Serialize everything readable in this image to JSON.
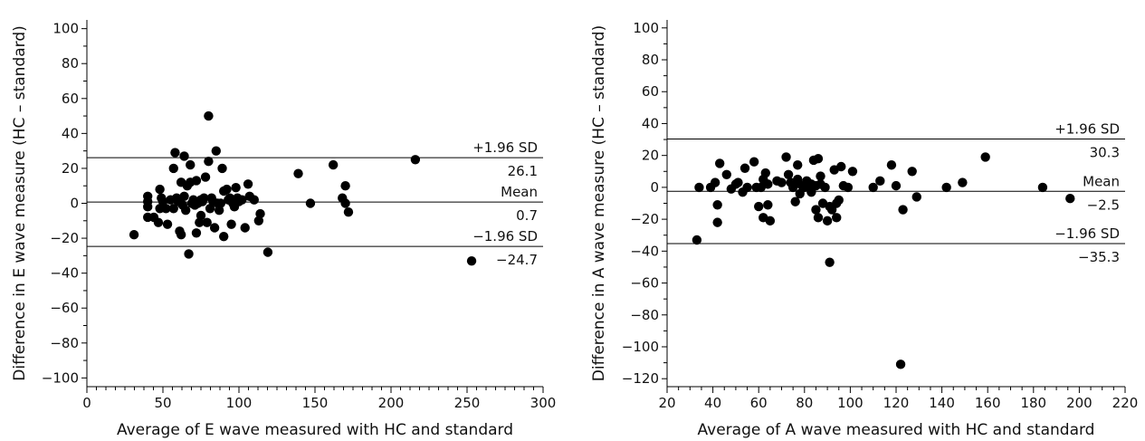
{
  "chart_data": [
    {
      "type": "scatter",
      "title": "",
      "xlabel": "Average of E wave measured with HC and standard",
      "ylabel": "Difference in E wave measure (HC – standard)",
      "xlim": [
        0,
        300
      ],
      "ylim": [
        -105,
        105
      ],
      "xticks": [
        0,
        50,
        100,
        150,
        200,
        250,
        300
      ],
      "yticks": [
        -100,
        -80,
        -60,
        -40,
        -20,
        0,
        20,
        40,
        60,
        80,
        100
      ],
      "xtick_labels": [
        "0",
        "50",
        "100",
        "150",
        "200",
        "250",
        "300"
      ],
      "ytick_labels": [
        "−100",
        "−80",
        "−60",
        "−40",
        "−20",
        "0",
        "20",
        "40",
        "60",
        "80",
        "100"
      ],
      "reference_lines": [
        {
          "y": 26.1,
          "label_above": "+1.96 SD",
          "value_label": "26.1"
        },
        {
          "y": 0.7,
          "label_above": "Mean",
          "value_label": "0.7"
        },
        {
          "y": -24.7,
          "label_above": "−1.96 SD",
          "value_label": "−24.7"
        }
      ],
      "grid": false,
      "points": [
        [
          31,
          -18
        ],
        [
          40,
          4
        ],
        [
          40,
          1
        ],
        [
          40,
          -2
        ],
        [
          40,
          -8
        ],
        [
          44,
          -8
        ],
        [
          47,
          -11
        ],
        [
          48,
          8
        ],
        [
          48,
          -3
        ],
        [
          49,
          3
        ],
        [
          50,
          1
        ],
        [
          52,
          -3
        ],
        [
          53,
          -12
        ],
        [
          55,
          2
        ],
        [
          57,
          20
        ],
        [
          57,
          -3
        ],
        [
          58,
          29
        ],
        [
          59,
          3
        ],
        [
          60,
          1
        ],
        [
          61,
          -16
        ],
        [
          62,
          -18
        ],
        [
          62,
          12
        ],
        [
          63,
          -1
        ],
        [
          64,
          4
        ],
        [
          64,
          27
        ],
        [
          65,
          -4
        ],
        [
          66,
          10
        ],
        [
          67,
          -29
        ],
        [
          68,
          22
        ],
        [
          68,
          12
        ],
        [
          69,
          0
        ],
        [
          70,
          2
        ],
        [
          71,
          -1
        ],
        [
          72,
          13
        ],
        [
          72,
          -17
        ],
        [
          73,
          0
        ],
        [
          74,
          -11
        ],
        [
          75,
          -7
        ],
        [
          75,
          2
        ],
        [
          76,
          1
        ],
        [
          77,
          3
        ],
        [
          78,
          15
        ],
        [
          79,
          -11
        ],
        [
          80,
          24
        ],
        [
          80,
          50
        ],
        [
          81,
          -3
        ],
        [
          82,
          3
        ],
        [
          83,
          1
        ],
        [
          84,
          -14
        ],
        [
          85,
          30
        ],
        [
          86,
          0
        ],
        [
          87,
          -4
        ],
        [
          88,
          0
        ],
        [
          89,
          20
        ],
        [
          90,
          -19
        ],
        [
          90,
          7
        ],
        [
          92,
          8
        ],
        [
          93,
          2
        ],
        [
          94,
          3
        ],
        [
          95,
          -12
        ],
        [
          96,
          0
        ],
        [
          97,
          -2
        ],
        [
          98,
          9
        ],
        [
          99,
          3
        ],
        [
          100,
          1
        ],
        [
          102,
          2
        ],
        [
          104,
          -14
        ],
        [
          106,
          11
        ],
        [
          107,
          4
        ],
        [
          110,
          2
        ],
        [
          113,
          -10
        ],
        [
          114,
          -6
        ],
        [
          119,
          -28
        ],
        [
          139,
          17
        ],
        [
          147,
          0
        ],
        [
          162,
          22
        ],
        [
          168,
          3
        ],
        [
          170,
          10
        ],
        [
          170,
          0
        ],
        [
          172,
          -5
        ],
        [
          216,
          25
        ],
        [
          253,
          -33
        ]
      ]
    },
    {
      "type": "scatter",
      "title": "",
      "xlabel": "Average of A wave measured with HC and standard",
      "ylabel": "Difference in A wave measure (HC – standard)",
      "xlim": [
        20,
        220
      ],
      "ylim": [
        -125,
        105
      ],
      "xticks": [
        20,
        40,
        60,
        80,
        100,
        120,
        140,
        160,
        180,
        200,
        220
      ],
      "yticks": [
        -120,
        -100,
        -80,
        -60,
        -40,
        -20,
        0,
        20,
        40,
        60,
        80,
        100
      ],
      "xtick_labels": [
        "20",
        "40",
        "60",
        "80",
        "100",
        "120",
        "140",
        "160",
        "180",
        "200",
        "220"
      ],
      "ytick_labels": [
        "−120",
        "−100",
        "−80",
        "−60",
        "−40",
        "−20",
        "0",
        "20",
        "40",
        "60",
        "80",
        "100"
      ],
      "reference_lines": [
        {
          "y": 30.3,
          "label_above": "+1.96 SD",
          "value_label": "30.3"
        },
        {
          "y": -2.5,
          "label_above": "Mean",
          "value_label": "−2.5"
        },
        {
          "y": -35.3,
          "label_above": "−1.96 SD",
          "value_label": "−35.3"
        }
      ],
      "grid": false,
      "points": [
        [
          33,
          -33
        ],
        [
          34,
          0
        ],
        [
          39,
          0
        ],
        [
          41,
          3
        ],
        [
          42,
          -11
        ],
        [
          42,
          -22
        ],
        [
          43,
          15
        ],
        [
          46,
          8
        ],
        [
          48,
          -1
        ],
        [
          50,
          2
        ],
        [
          51,
          3
        ],
        [
          53,
          -3
        ],
        [
          54,
          12
        ],
        [
          55,
          0
        ],
        [
          58,
          16
        ],
        [
          59,
          0
        ],
        [
          60,
          -12
        ],
        [
          61,
          0
        ],
        [
          62,
          5
        ],
        [
          62,
          -19
        ],
        [
          63,
          9
        ],
        [
          64,
          -11
        ],
        [
          64,
          2
        ],
        [
          65,
          -21
        ],
        [
          68,
          4
        ],
        [
          70,
          3
        ],
        [
          72,
          19
        ],
        [
          73,
          8
        ],
        [
          74,
          3
        ],
        [
          75,
          0
        ],
        [
          76,
          2
        ],
        [
          76,
          -9
        ],
        [
          77,
          14
        ],
        [
          77,
          5
        ],
        [
          78,
          -4
        ],
        [
          79,
          1
        ],
        [
          80,
          0
        ],
        [
          81,
          4
        ],
        [
          82,
          0
        ],
        [
          83,
          2
        ],
        [
          83,
          -3
        ],
        [
          84,
          17
        ],
        [
          85,
          -14
        ],
        [
          85,
          1
        ],
        [
          86,
          -19
        ],
        [
          86,
          18
        ],
        [
          87,
          2
        ],
        [
          87,
          7
        ],
        [
          88,
          -10
        ],
        [
          89,
          0
        ],
        [
          90,
          -21
        ],
        [
          91,
          -12
        ],
        [
          91,
          -47
        ],
        [
          92,
          -14
        ],
        [
          93,
          11
        ],
        [
          94,
          -10
        ],
        [
          94,
          -19
        ],
        [
          95,
          -8
        ],
        [
          96,
          13
        ],
        [
          97,
          1
        ],
        [
          99,
          0
        ],
        [
          101,
          10
        ],
        [
          110,
          0
        ],
        [
          113,
          4
        ],
        [
          118,
          14
        ],
        [
          120,
          1
        ],
        [
          122,
          -111
        ],
        [
          123,
          -14
        ],
        [
          127,
          10
        ],
        [
          129,
          -6
        ],
        [
          142,
          0
        ],
        [
          149,
          3
        ],
        [
          159,
          19
        ],
        [
          184,
          0
        ],
        [
          196,
          -7
        ]
      ]
    }
  ]
}
